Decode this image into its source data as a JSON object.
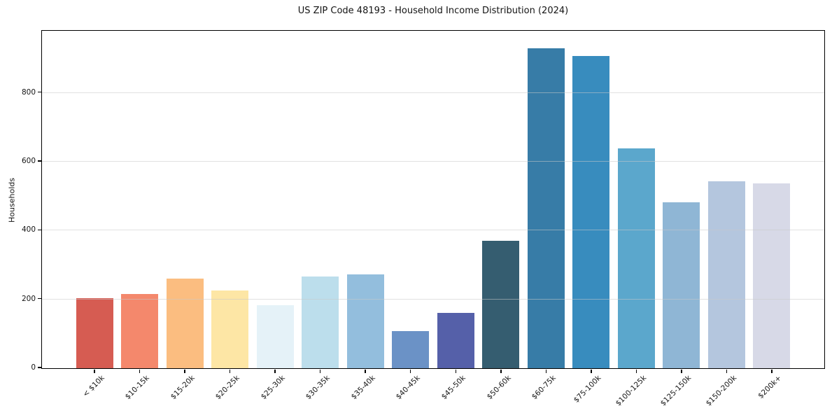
{
  "chart_data": {
    "type": "bar",
    "title": "US ZIP Code 48193 - Household Income Distribution (2024)",
    "xlabel": "",
    "ylabel": "Households",
    "categories": [
      "< $10k",
      "$10-15k",
      "$15-20k",
      "$20-25k",
      "$25-30k",
      "$30-35k",
      "$35-40k",
      "$40-45k",
      "$45-50k",
      "$50-60k",
      "$60-75k",
      "$75-100k",
      "$100-125k",
      "$125-150k",
      "$150-200k",
      "$200k+"
    ],
    "values": [
      204,
      216,
      261,
      226,
      184,
      267,
      273,
      107,
      161,
      370,
      929,
      906,
      639,
      481,
      543,
      537
    ],
    "bar_colors": [
      "#d65c52",
      "#f4886c",
      "#fbbd80",
      "#fde6a5",
      "#e5f2f8",
      "#bcdeec",
      "#93bedd",
      "#6b92c6",
      "#5560a9",
      "#355d70",
      "#377ca7",
      "#388cbe",
      "#5ba7cc",
      "#8fb6d5",
      "#b4c6de",
      "#d7d9e7"
    ],
    "yticks": [
      0,
      200,
      400,
      600,
      800
    ],
    "ylim": [
      0,
      978
    ],
    "grid": "horizontal-over-bars",
    "gridline_color": "#e5e5e5",
    "legend": "none",
    "background": "#ffffff",
    "axis_color": "#000000"
  }
}
